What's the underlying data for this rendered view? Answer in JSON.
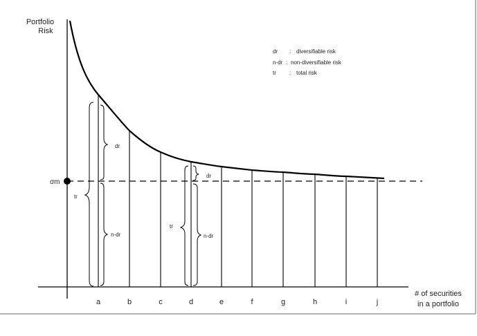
{
  "y_axis_label": [
    "Portfolio",
    "Risk"
  ],
  "x_axis_label": [
    "# of securities",
    "in a portfolio"
  ],
  "sigma_label": "σm",
  "legend": [
    {
      "abbr": "dr",
      "sep": ":",
      "text": "diversifiable risk"
    },
    {
      "abbr": "n-dr",
      "sep": ":",
      "text": "non-diversifiable risk"
    },
    {
      "abbr": "tr",
      "sep": ":",
      "text": "total risk"
    }
  ],
  "points": [
    "a",
    "b",
    "c",
    "d",
    "e",
    "f",
    "g",
    "h",
    "i",
    "j"
  ],
  "brace_labels": {
    "a_dr": "dr",
    "a_ndr": "n-dr",
    "a_tr": "tr",
    "d_dr": "dr",
    "d_ndr": "n-dr",
    "d_tr": "tr"
  }
}
